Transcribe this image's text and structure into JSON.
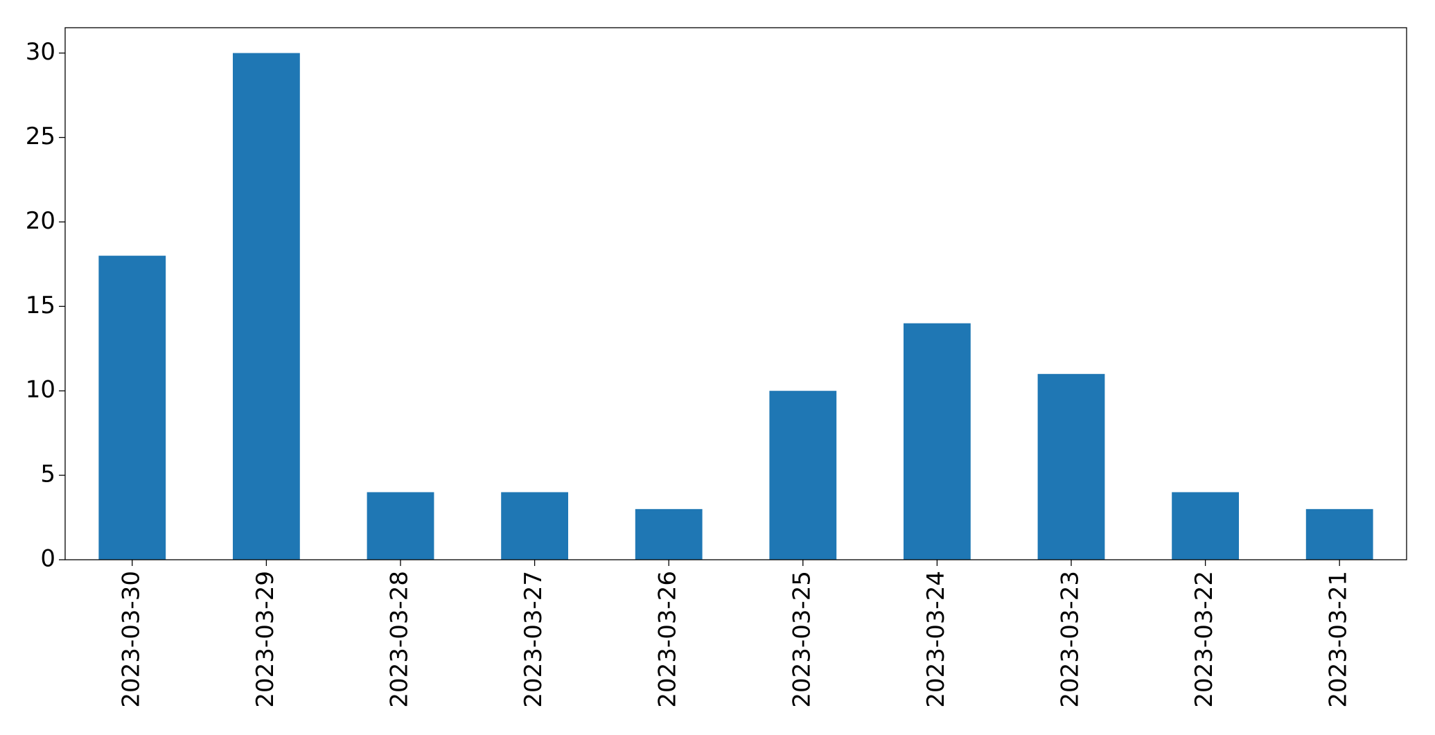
{
  "chart_data": {
    "type": "bar",
    "categories": [
      "2023-03-30",
      "2023-03-29",
      "2023-03-28",
      "2023-03-27",
      "2023-03-26",
      "2023-03-25",
      "2023-03-24",
      "2023-03-23",
      "2023-03-22",
      "2023-03-21"
    ],
    "values": [
      18,
      30,
      4,
      4,
      3,
      10,
      14,
      11,
      4,
      3
    ],
    "color": "#1f77b4",
    "ylim": [
      0,
      31.5
    ],
    "yticks": [
      0,
      5,
      10,
      15,
      20,
      25,
      30
    ],
    "grid": false
  }
}
